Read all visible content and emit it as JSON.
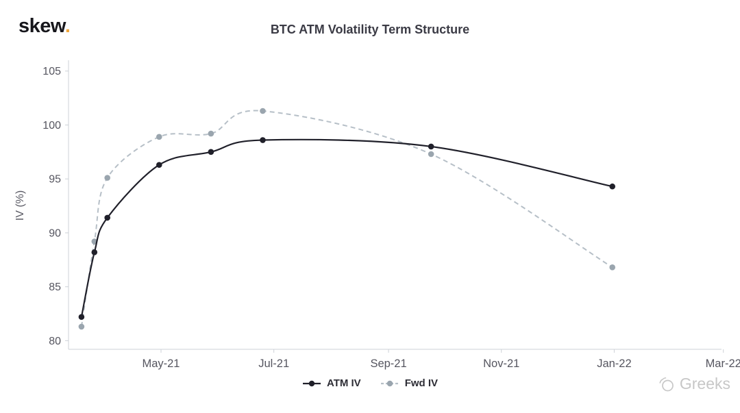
{
  "header": {
    "logo_text": "skew",
    "logo_dot": ".",
    "logo_dot_color": "#f0a63c"
  },
  "watermark": {
    "text": "Greeks"
  },
  "chart_data": {
    "type": "line",
    "title": "BTC ATM Volatility Term Structure",
    "ylabel": "IV (%)",
    "ylim": [
      80,
      105
    ],
    "yticks": [
      80,
      85,
      90,
      95,
      100,
      105
    ],
    "grid": false,
    "legend_position": "bottom-center",
    "axis_color": "#cdd1d7",
    "tick_label_color": "#55555f",
    "x_domain": [
      "2021-03-12",
      "2022-02-28"
    ],
    "xticks": [
      {
        "label": "May-21",
        "date": "2021-05-01"
      },
      {
        "label": "Jul-21",
        "date": "2021-07-01"
      },
      {
        "label": "Sep-21",
        "date": "2021-09-01"
      },
      {
        "label": "Nov-21",
        "date": "2021-11-01"
      },
      {
        "label": "Jan-22",
        "date": "2022-01-01"
      },
      {
        "label": "Mar-22",
        "date": "2022-03-01"
      }
    ],
    "series": [
      {
        "name": "ATM IV",
        "color": "#20202a",
        "line_style": "solid",
        "marker": "circle",
        "points": [
          {
            "date": "2021-03-19",
            "value": 82.2
          },
          {
            "date": "2021-03-26",
            "value": 88.2
          },
          {
            "date": "2021-04-02",
            "value": 91.4
          },
          {
            "date": "2021-04-30",
            "value": 96.3
          },
          {
            "date": "2021-05-28",
            "value": 97.5
          },
          {
            "date": "2021-06-25",
            "value": 98.6
          },
          {
            "date": "2021-09-24",
            "value": 98.0
          },
          {
            "date": "2021-12-31",
            "value": 94.3
          }
        ]
      },
      {
        "name": "Fwd IV",
        "color": "#b6bfc7",
        "marker_color": "#9aa5ae",
        "line_style": "dashed",
        "marker": "circle",
        "points": [
          {
            "date": "2021-03-19",
            "value": 81.3
          },
          {
            "date": "2021-03-26",
            "value": 89.2
          },
          {
            "date": "2021-04-02",
            "value": 95.1
          },
          {
            "date": "2021-04-30",
            "value": 98.9
          },
          {
            "date": "2021-05-28",
            "value": 99.2
          },
          {
            "date": "2021-06-25",
            "value": 101.3
          },
          {
            "date": "2021-09-24",
            "value": 97.3
          },
          {
            "date": "2021-12-31",
            "value": 86.8
          }
        ]
      }
    ]
  }
}
